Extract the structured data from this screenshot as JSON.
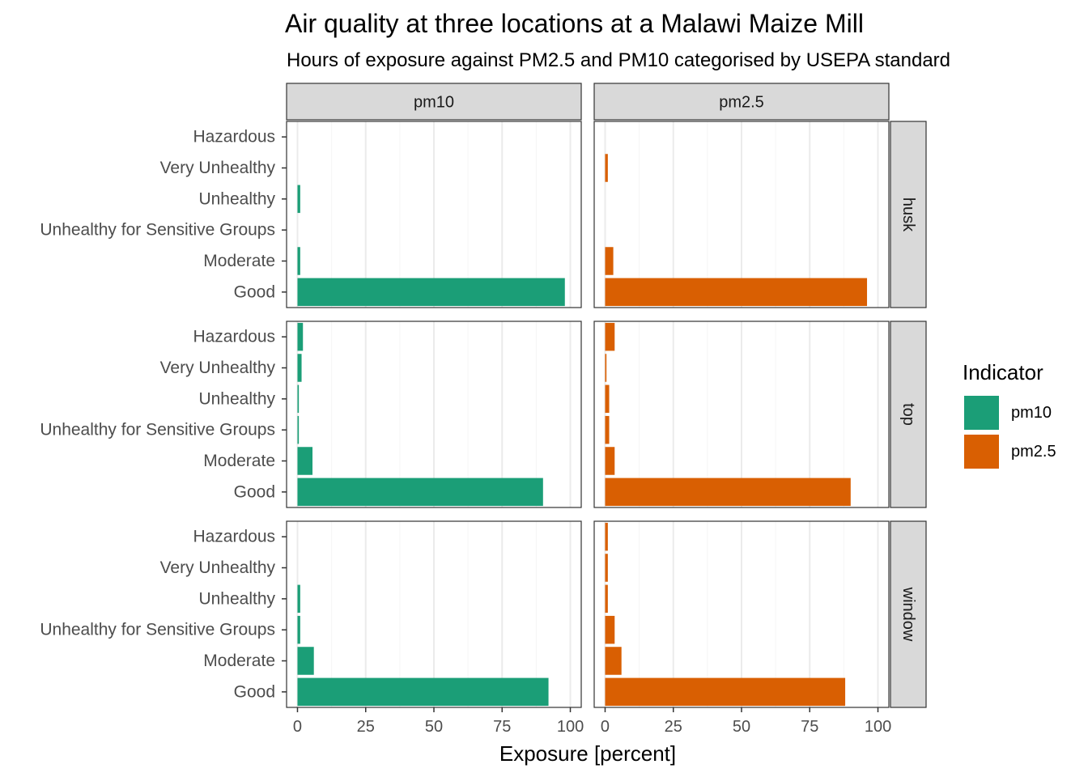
{
  "chart_data": {
    "type": "bar",
    "orientation": "horizontal",
    "title": "Air quality at three locations at a Malawi Maize Mill",
    "subtitle": "Hours of exposure against PM2.5 and PM10 categorised by USEPA standard",
    "xlabel": "Exposure [percent]",
    "ylabel": "",
    "xlim": [
      -4,
      104
    ],
    "xticks": [
      0,
      25,
      50,
      75,
      100
    ],
    "categories": [
      "Hazardous",
      "Very Unhealthy",
      "Unhealthy",
      "Unhealthy for Sensitive Groups",
      "Moderate",
      "Good"
    ],
    "columns": [
      "pm10",
      "pm2.5"
    ],
    "rows": [
      "husk",
      "top",
      "window"
    ],
    "grid": true,
    "legend": {
      "title": "Indicator",
      "position": "right",
      "entries": [
        {
          "name": "pm10",
          "color": "#1b9e77"
        },
        {
          "name": "pm2.5",
          "color": "#d95f02"
        }
      ]
    },
    "panels": [
      {
        "row": "husk",
        "column": "pm10",
        "values": [
          0,
          0,
          1,
          0,
          1,
          98
        ]
      },
      {
        "row": "husk",
        "column": "pm2.5",
        "values": [
          0,
          1,
          0,
          0,
          3,
          96
        ]
      },
      {
        "row": "top",
        "column": "pm10",
        "values": [
          2,
          1.5,
          0.5,
          0.5,
          5.5,
          90
        ]
      },
      {
        "row": "top",
        "column": "pm2.5",
        "values": [
          3.5,
          0.5,
          1.5,
          1.5,
          3.5,
          90
        ]
      },
      {
        "row": "window",
        "column": "pm10",
        "values": [
          0,
          0,
          1,
          1,
          6,
          92
        ]
      },
      {
        "row": "window",
        "column": "pm2.5",
        "values": [
          1,
          1,
          1,
          3.5,
          6,
          88
        ]
      }
    ]
  }
}
